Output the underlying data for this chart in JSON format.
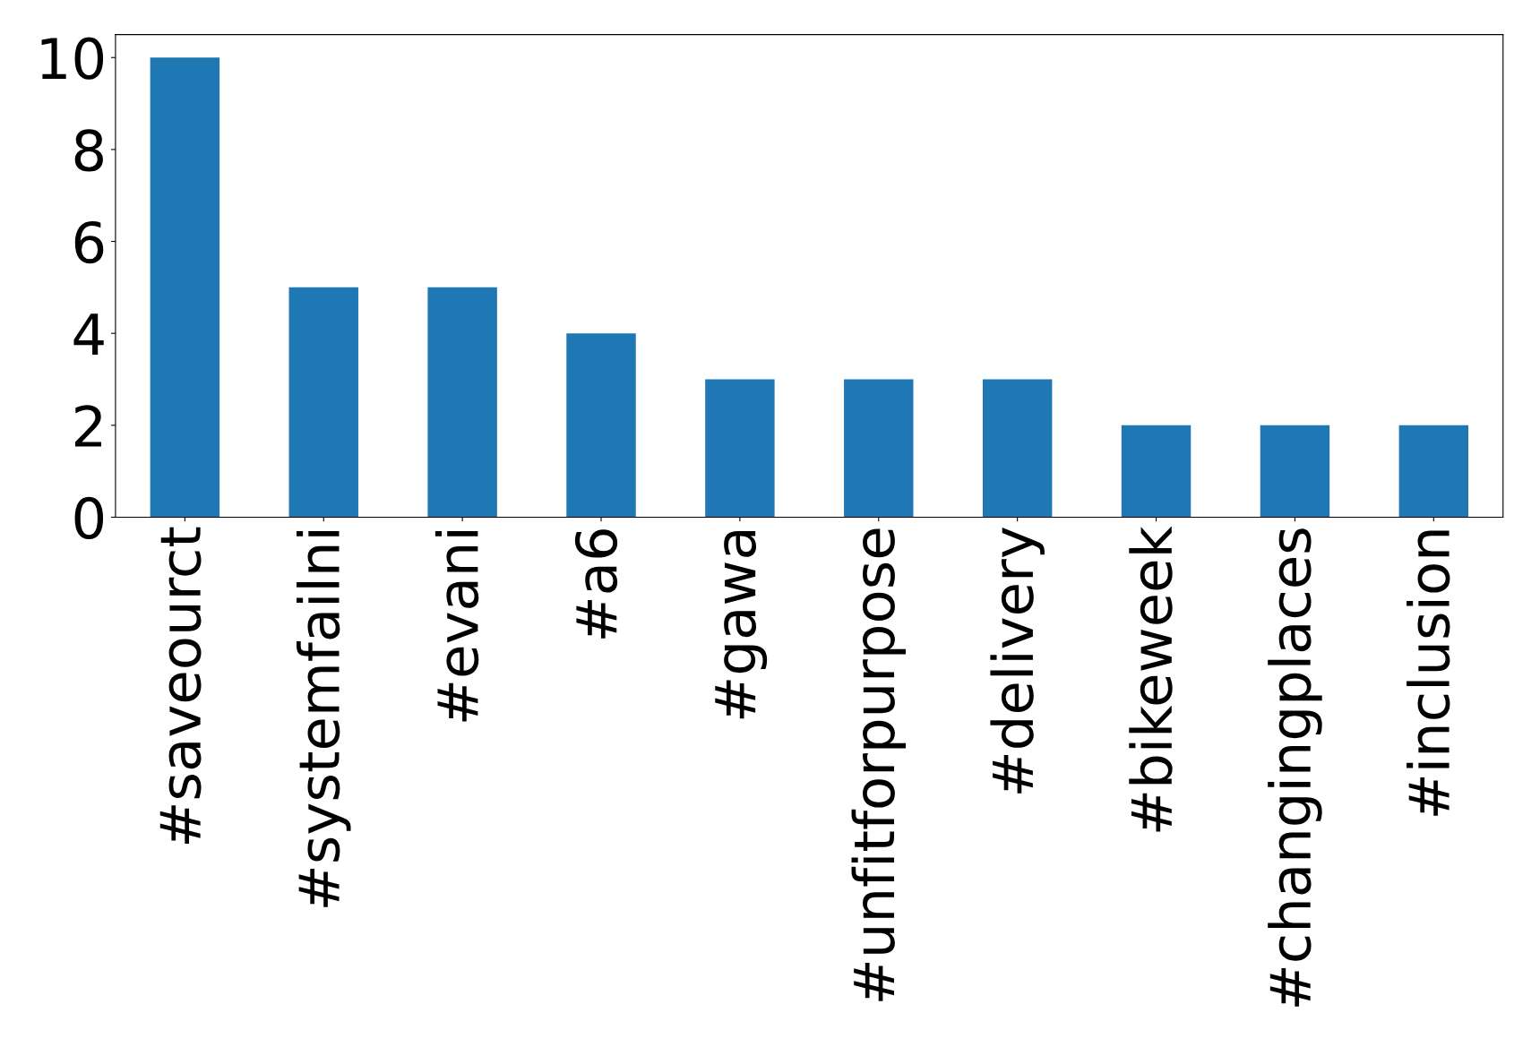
{
  "chart_data": {
    "type": "bar",
    "categories": [
      "#saveourct",
      "#systemfailni",
      "#evani",
      "#a6",
      "#gawa",
      "#unfitforpurpose",
      "#delivery",
      "#bikeweek",
      "#changingplaces",
      "#inclusion"
    ],
    "values": [
      10,
      5,
      5,
      4,
      3,
      3,
      3,
      2,
      2,
      2
    ],
    "color": "#1f77b4",
    "ylim": [
      0,
      10.5
    ],
    "yticks": [
      0,
      2,
      4,
      6,
      8,
      10
    ],
    "grid": false
  }
}
